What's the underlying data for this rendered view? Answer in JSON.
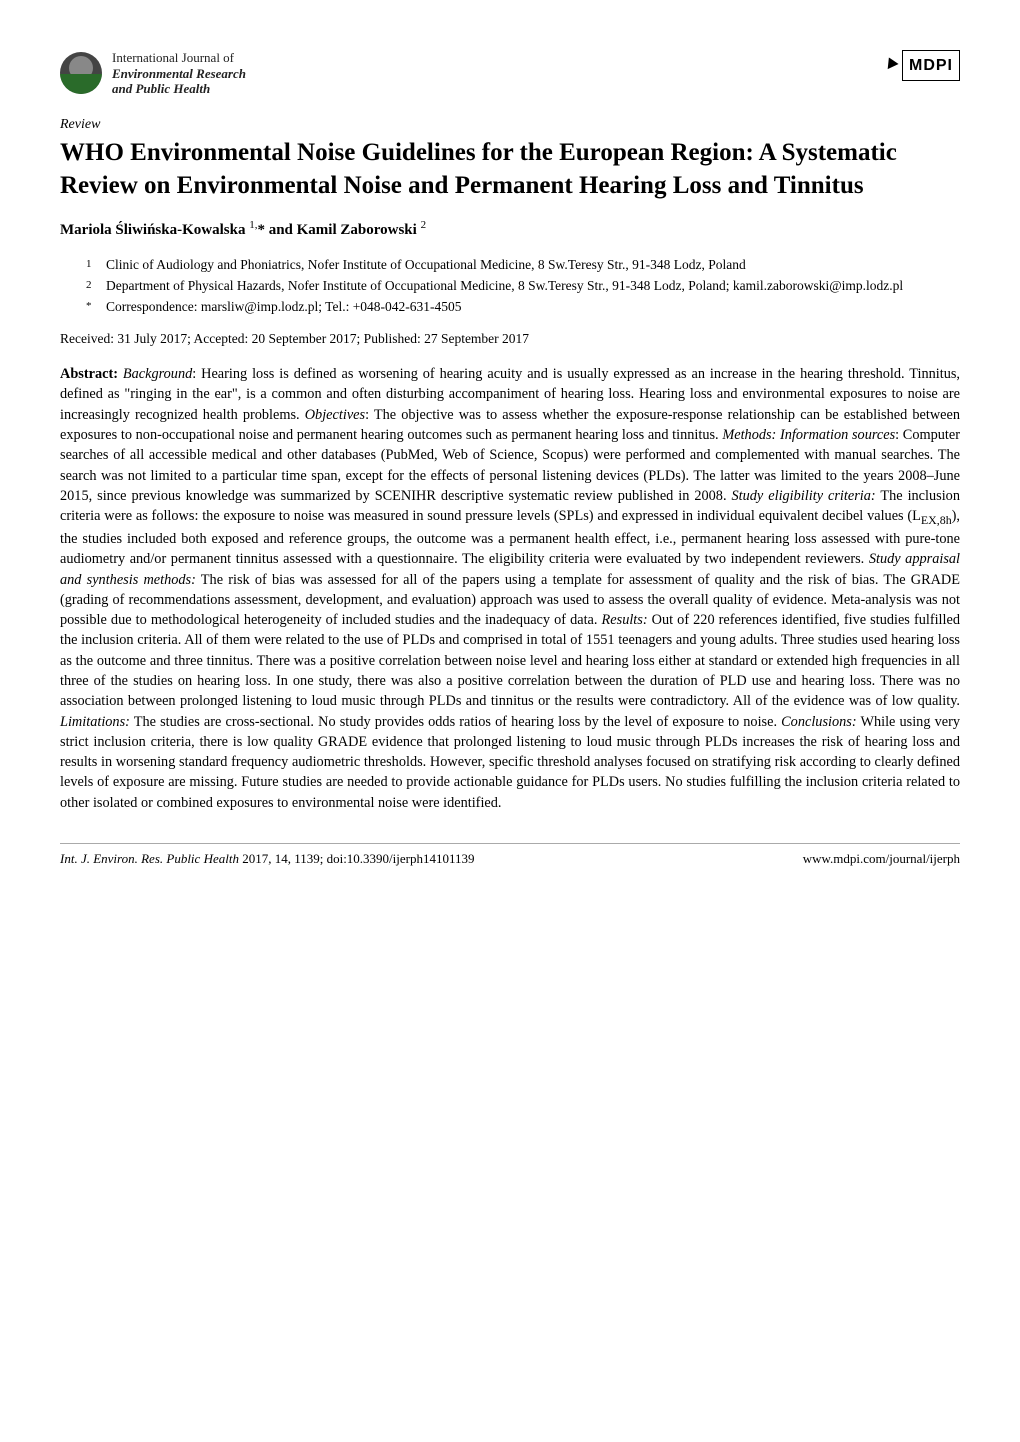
{
  "journal": {
    "line1": "International Journal of",
    "line2a": "Environmental Research",
    "line2b": "and Public Health"
  },
  "publisher": "MDPI",
  "article_type": "Review",
  "title": "WHO Environmental Noise Guidelines for the European Region: A Systematic Review on Environmental Noise and Permanent Hearing Loss and Tinnitus",
  "authors_html": "Mariola Śliwińska-Kowalska <sup>1,</sup>* and Kamil Zaborowski <sup>2</sup>",
  "affiliations": [
    {
      "num": "1",
      "text": "Clinic of Audiology and Phoniatrics, Nofer Institute of Occupational Medicine, 8 Sw.Teresy Str., 91-348 Lodz, Poland"
    },
    {
      "num": "2",
      "text": "Department of Physical Hazards, Nofer Institute of Occupational Medicine, 8 Sw.Teresy Str., 91-348 Lodz, Poland; kamil.zaborowski@imp.lodz.pl"
    },
    {
      "num": "*",
      "text": "Correspondence: marsliw@imp.lodz.pl; Tel.: +048-042-631-4505"
    }
  ],
  "dates": "Received: 31 July 2017; Accepted: 20 September 2017; Published: 27 September 2017",
  "abstract": {
    "label": "Abstract:",
    "sections": {
      "background_label": "Background",
      "background": ": Hearing loss is defined as worsening of hearing acuity and is usually expressed as an increase in the hearing threshold. Tinnitus, defined as \"ringing in the ear\", is a common and often disturbing accompaniment of hearing loss. Hearing loss and environmental exposures to noise are increasingly recognized health problems. ",
      "objectives_label": "Objectives",
      "objectives": ": The objective was to assess whether the exposure-response relationship can be established between exposures to non-occupational noise and permanent hearing outcomes such as permanent hearing loss and tinnitus. ",
      "methods_label": "Methods: Information sources",
      "methods": ": Computer searches of all accessible medical and other databases (PubMed, Web of Science, Scopus) were performed and complemented with manual searches. The search was not limited to a particular time span, except for the effects of personal listening devices (PLDs). The latter was limited to the years 2008–June 2015, since previous knowledge was summarized by SCENIHR descriptive systematic review published in 2008. ",
      "eligibility_label": "Study eligibility criteria:",
      "eligibility": " The inclusion criteria were as follows: the exposure to noise was measured in sound pressure levels (SPLs) and expressed in individual equivalent decibel values (L",
      "eligibility_sub": "EX,8h",
      "eligibility2": "), the studies included both exposed and reference groups, the outcome was a permanent health effect, i.e., permanent hearing loss assessed with pure-tone audiometry and/or permanent tinnitus assessed with a questionnaire. The eligibility criteria were evaluated by two independent reviewers. ",
      "appraisal_label": "Study appraisal and synthesis methods:",
      "appraisal": " The risk of bias was assessed for all of the papers using a template for assessment of quality and the risk of bias. The GRADE (grading of recommendations assessment, development, and evaluation) approach was used to assess the overall quality of evidence. Meta-analysis was not possible due to methodological heterogeneity of included studies and the inadequacy of data. ",
      "results_label": "Results:",
      "results": " Out of 220 references identified, five studies fulfilled the inclusion criteria. All of them were related to the use of PLDs and comprised in total of 1551 teenagers and young adults. Three studies used hearing loss as the outcome and three tinnitus. There was a positive correlation between noise level and hearing loss either at standard or extended high frequencies in all three of the studies on hearing loss. In one study, there was also a positive correlation between the duration of PLD use and hearing loss. There was no association between prolonged listening to loud music through PLDs and tinnitus or the results were contradictory. All of the evidence was of low quality. ",
      "limitations_label": "Limitations:",
      "limitations": " The studies are cross-sectional. No study provides odds ratios of hearing loss by the level of exposure to noise. ",
      "conclusions_label": "Conclusions:",
      "conclusions": " While using very strict inclusion criteria, there is low quality GRADE evidence that prolonged listening to loud music through PLDs increases the risk of hearing loss and results in worsening standard frequency audiometric thresholds. However, specific threshold analyses focused on stratifying risk according to clearly defined levels of exposure are missing. Future studies are needed to provide actionable guidance for PLDs users. No studies fulfilling the inclusion criteria related to other isolated or combined exposures to environmental noise were identified."
    }
  },
  "footer": {
    "left_journal": "Int. J. Environ. Res. Public Health",
    "left_rest": " 2017, 14, 1139; doi:10.3390/ijerph14101139",
    "right": "www.mdpi.com/journal/ijerph"
  }
}
